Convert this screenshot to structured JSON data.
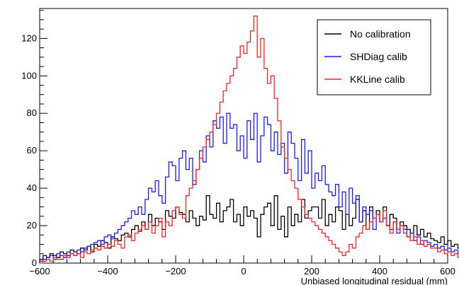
{
  "chart_data": {
    "type": "line",
    "title": "",
    "xlabel": "Unbiased longitudinal residual (mm)",
    "ylabel": "",
    "xlim": [
      -600,
      600
    ],
    "ylim": [
      0,
      136
    ],
    "bin_width": 10,
    "grid": false,
    "legend_position": "top-right",
    "xticks": [
      {
        "value": -600,
        "label": "−600"
      },
      {
        "value": -400,
        "label": "−400"
      },
      {
        "value": -200,
        "label": "−200"
      },
      {
        "value": 0,
        "label": "0"
      },
      {
        "value": 200,
        "label": "200"
      },
      {
        "value": 400,
        "label": "400"
      },
      {
        "value": 600,
        "label": "600"
      }
    ],
    "yticks": [
      {
        "value": 0,
        "label": "0"
      },
      {
        "value": 20,
        "label": "20"
      },
      {
        "value": 40,
        "label": "40"
      },
      {
        "value": 60,
        "label": "60"
      },
      {
        "value": 80,
        "label": "80"
      },
      {
        "value": 100,
        "label": "100"
      },
      {
        "value": 120,
        "label": "120"
      }
    ],
    "series": [
      {
        "name": "No calibration",
        "color": "#000000",
        "values": [
          2,
          4,
          3,
          5,
          4,
          3,
          6,
          5,
          4,
          7,
          6,
          5,
          8,
          7,
          9,
          6,
          10,
          9,
          12,
          11,
          8,
          14,
          13,
          12,
          15,
          16,
          14,
          18,
          20,
          17,
          22,
          18,
          26,
          20,
          24,
          22,
          18,
          28,
          25,
          24,
          30,
          27,
          26,
          22,
          28,
          24,
          20,
          25,
          23,
          36,
          26,
          24,
          32,
          22,
          28,
          30,
          34,
          22,
          26,
          20,
          30,
          25,
          28,
          24,
          14,
          26,
          30,
          32,
          20,
          36,
          18,
          25,
          14,
          30,
          20,
          26,
          22,
          34,
          24,
          28,
          30,
          30,
          24,
          34,
          20,
          26,
          22,
          30,
          28,
          18,
          26,
          20,
          24,
          34,
          22,
          28,
          18,
          30,
          24,
          28,
          22,
          30,
          20,
          26,
          24,
          18,
          22,
          20,
          18,
          16,
          20,
          15,
          18,
          14,
          16,
          13,
          12,
          11,
          14,
          10,
          12,
          9,
          10,
          8,
          9,
          8,
          6,
          7,
          6,
          5,
          5,
          4,
          4,
          3
        ]
      },
      {
        "name": "SHDiag calib",
        "color": "#1a1aff",
        "values": [
          1,
          2,
          3,
          4,
          2,
          5,
          4,
          3,
          6,
          5,
          4,
          7,
          6,
          8,
          9,
          10,
          11,
          12,
          10,
          14,
          15,
          13,
          16,
          18,
          20,
          22,
          24,
          28,
          26,
          30,
          26,
          34,
          40,
          38,
          44,
          36,
          32,
          46,
          54,
          52,
          44,
          56,
          60,
          50,
          56,
          42,
          50,
          60,
          54,
          68,
          62,
          76,
          72,
          78,
          64,
          80,
          72,
          74,
          60,
          68,
          56,
          76,
          66,
          80,
          54,
          68,
          78,
          74,
          60,
          70,
          58,
          64,
          48,
          70,
          64,
          56,
          44,
          66,
          48,
          60,
          40,
          48,
          44,
          52,
          42,
          38,
          36,
          42,
          30,
          38,
          26,
          40,
          32,
          36,
          22,
          30,
          26,
          28,
          18,
          26,
          22,
          24,
          20,
          18,
          22,
          16,
          20,
          18,
          14,
          16,
          12,
          14,
          10,
          12,
          11,
          9,
          10,
          8,
          9,
          7,
          8,
          6,
          7,
          5,
          6,
          5,
          4,
          3,
          4,
          3,
          2,
          3,
          2,
          1
        ]
      },
      {
        "name": "KKLine calib",
        "color": "#ff2020",
        "values": [
          0,
          1,
          2,
          1,
          3,
          2,
          2,
          4,
          3,
          5,
          4,
          5,
          3,
          6,
          5,
          7,
          8,
          7,
          9,
          8,
          10,
          9,
          12,
          10,
          8,
          14,
          15,
          12,
          16,
          18,
          20,
          18,
          22,
          16,
          20,
          24,
          14,
          22,
          20,
          28,
          30,
          26,
          24,
          36,
          40,
          44,
          50,
          56,
          62,
          66,
          70,
          74,
          80,
          86,
          92,
          96,
          100,
          104,
          110,
          116,
          112,
          118,
          124,
          132,
          110,
          120,
          104,
          96,
          100,
          88,
          76,
          62,
          56,
          50,
          44,
          40,
          34,
          30,
          26,
          24,
          22,
          20,
          18,
          16,
          14,
          12,
          10,
          8,
          6,
          4,
          6,
          10,
          8,
          14,
          16,
          20,
          18,
          22,
          24,
          26,
          22,
          28,
          20,
          16,
          22,
          18,
          20,
          16,
          14,
          12,
          14,
          10,
          12,
          9,
          10,
          8,
          8,
          6,
          7,
          5,
          6,
          4,
          5,
          3,
          4,
          3,
          2,
          2,
          1,
          1
        ]
      }
    ]
  }
}
